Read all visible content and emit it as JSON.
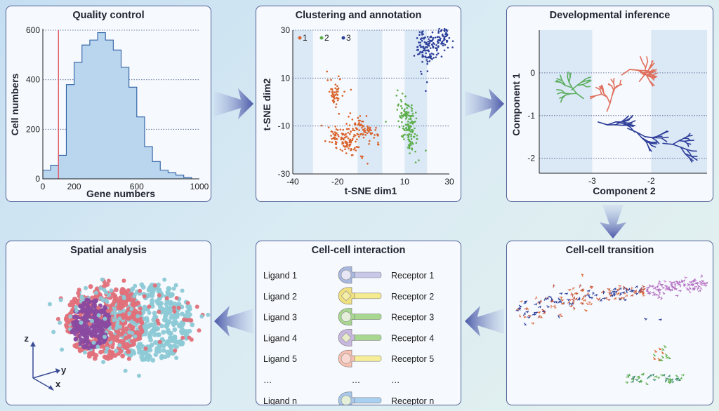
{
  "panels": {
    "quality": {
      "title": "Quality control",
      "xlabel": "Gene numbers",
      "ylabel": "Cell numbers"
    },
    "clustering": {
      "title": "Clustering and annotation",
      "xlabel": "t-SNE dim1",
      "ylabel": "t-SNE dim2",
      "legend": [
        "1",
        "2",
        "3"
      ]
    },
    "developmental": {
      "title": "Developmental inference",
      "xlabel": "Component 2",
      "ylabel": "Component 1"
    },
    "transition": {
      "title": "Cell-cell transition"
    },
    "interaction": {
      "title": "Cell-cell interaction",
      "rows": [
        {
          "ligand": "Ligand 1",
          "receptor": "Receptor 1"
        },
        {
          "ligand": "Ligand 2",
          "receptor": "Receptor 2"
        },
        {
          "ligand": "Ligand 3",
          "receptor": "Receptor 3"
        },
        {
          "ligand": "Ligand 4",
          "receptor": "Receptor 4"
        },
        {
          "ligand": "Ligand 5",
          "receptor": "Receptor 5"
        },
        {
          "ligand": "…",
          "receptor": "…",
          "mid": "…"
        },
        {
          "ligand": "Ligand n",
          "receptor": "Receptor n"
        }
      ]
    },
    "spatial": {
      "title": "Spatial analysis",
      "axes": {
        "z": "z",
        "y": "y",
        "x": "x"
      }
    }
  },
  "colors": {
    "histogram_fill": "#b9d6ee",
    "histogram_edge": "#2e5fa3",
    "threshold_line": "#e05a6a",
    "cluster_1": "#d9622b",
    "cluster_2": "#5cad4a",
    "cluster_3": "#2c3f9a",
    "branch_red": "#e0705e",
    "branch_green": "#5cae5f",
    "branch_blue": "#2f3f9a",
    "spatial_purple": "#8a4aa0",
    "spatial_pink": "#e0707a",
    "spatial_cyan": "#8cc9d6",
    "panel_border": "#4e5f96"
  },
  "chart_data": [
    {
      "type": "bar",
      "title": "Quality control",
      "xlabel": "Gene numbers",
      "ylabel": "Cell numbers",
      "bin_start": 0,
      "bin_width": 50,
      "values": [
        35,
        55,
        95,
        380,
        470,
        540,
        560,
        590,
        560,
        520,
        450,
        370,
        250,
        130,
        70,
        35,
        25,
        15,
        5,
        0
      ],
      "threshold": 100,
      "xlim": [
        0,
        1000
      ],
      "ylim": [
        0,
        600
      ],
      "xticks": [
        0,
        200,
        600,
        1000
      ],
      "yticks": [
        0,
        200,
        400,
        600
      ]
    },
    {
      "type": "scatter",
      "title": "Clustering and annotation",
      "xlabel": "t-SNE dim1",
      "ylabel": "t-SNE dim2",
      "xlim": [
        -40,
        30
      ],
      "ylim": [
        -30,
        30
      ],
      "xticks": [
        -40,
        -20,
        10,
        30
      ],
      "yticks": [
        30,
        10,
        -10,
        -30
      ],
      "legend": [
        "1",
        "2",
        "3"
      ]
    },
    {
      "type": "line",
      "title": "Developmental inference",
      "xlabel": "Component 2",
      "ylabel": "Component 1",
      "xlim": [
        -3.9,
        -1.05
      ],
      "ylim": [
        -2.35,
        1.0
      ],
      "xticks": [
        -3,
        -2
      ],
      "yticks": [
        0,
        -1,
        -2
      ]
    }
  ]
}
